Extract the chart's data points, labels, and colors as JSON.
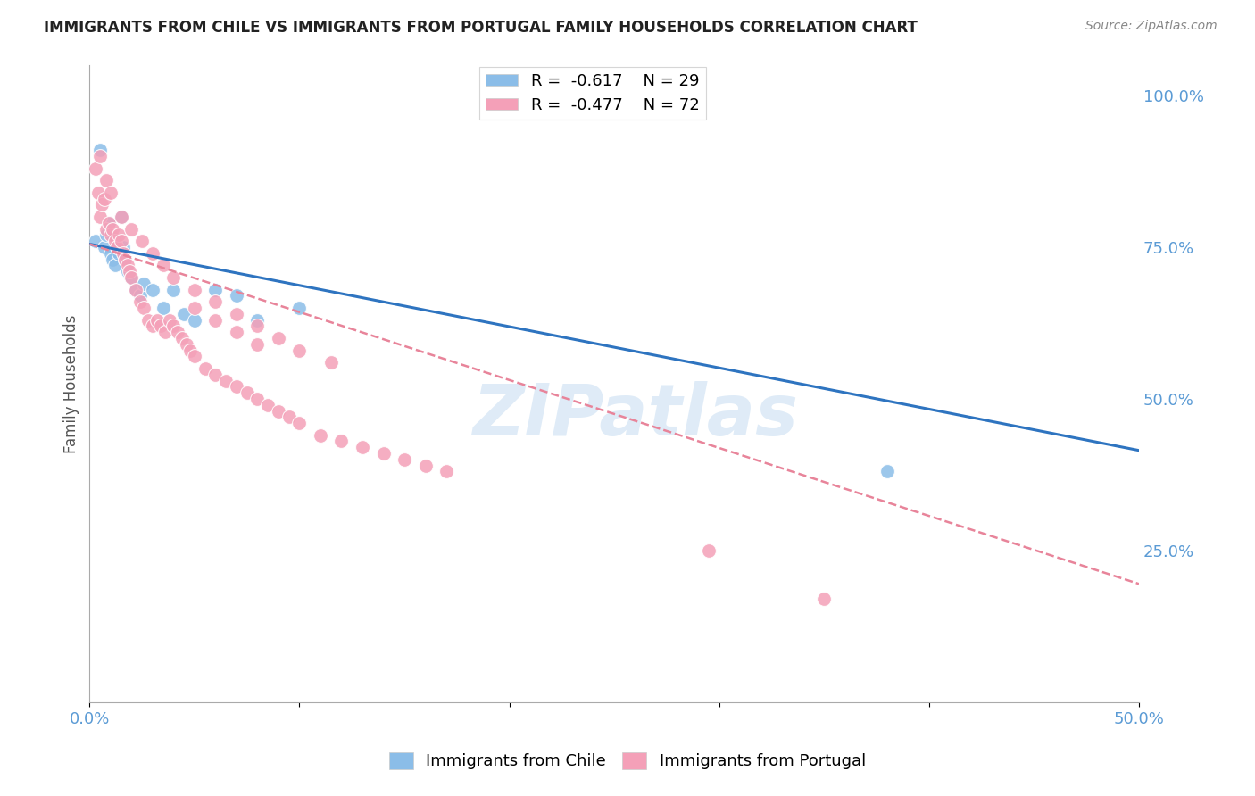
{
  "title": "IMMIGRANTS FROM CHILE VS IMMIGRANTS FROM PORTUGAL FAMILY HOUSEHOLDS CORRELATION CHART",
  "source": "Source: ZipAtlas.com",
  "ylabel": "Family Households",
  "right_yticks": [
    "100.0%",
    "75.0%",
    "50.0%",
    "25.0%"
  ],
  "right_ytick_vals": [
    1.0,
    0.75,
    0.5,
    0.25
  ],
  "watermark": "ZIPatlas",
  "chile_color": "#8bbde8",
  "portugal_color": "#f4a0b8",
  "chile_line_color": "#2e74c0",
  "portugal_line_color": "#e8849a",
  "right_axis_color": "#5b9bd5",
  "xlim": [
    0.0,
    0.5
  ],
  "ylim": [
    0.0,
    1.05
  ],
  "chile_scatter_x": [
    0.003,
    0.005,
    0.007,
    0.008,
    0.009,
    0.01,
    0.011,
    0.012,
    0.013,
    0.014,
    0.015,
    0.016,
    0.017,
    0.018,
    0.02,
    0.022,
    0.024,
    0.026,
    0.03,
    0.035,
    0.04,
    0.045,
    0.05,
    0.06,
    0.07,
    0.08,
    0.1,
    0.38
  ],
  "chile_scatter_y": [
    0.76,
    0.91,
    0.75,
    0.77,
    0.79,
    0.74,
    0.73,
    0.72,
    0.76,
    0.74,
    0.8,
    0.75,
    0.73,
    0.71,
    0.7,
    0.68,
    0.67,
    0.69,
    0.68,
    0.65,
    0.68,
    0.64,
    0.63,
    0.68,
    0.67,
    0.63,
    0.65,
    0.38
  ],
  "portugal_scatter_x": [
    0.003,
    0.004,
    0.005,
    0.006,
    0.007,
    0.008,
    0.009,
    0.01,
    0.011,
    0.012,
    0.013,
    0.014,
    0.015,
    0.016,
    0.017,
    0.018,
    0.019,
    0.02,
    0.022,
    0.024,
    0.026,
    0.028,
    0.03,
    0.032,
    0.034,
    0.036,
    0.038,
    0.04,
    0.042,
    0.044,
    0.046,
    0.048,
    0.05,
    0.055,
    0.06,
    0.065,
    0.07,
    0.075,
    0.08,
    0.085,
    0.09,
    0.095,
    0.1,
    0.11,
    0.12,
    0.13,
    0.14,
    0.15,
    0.16,
    0.17,
    0.005,
    0.008,
    0.01,
    0.015,
    0.02,
    0.025,
    0.03,
    0.035,
    0.04,
    0.05,
    0.06,
    0.07,
    0.08,
    0.09,
    0.1,
    0.115,
    0.05,
    0.06,
    0.07,
    0.08,
    0.295,
    0.35
  ],
  "portugal_scatter_y": [
    0.88,
    0.84,
    0.8,
    0.82,
    0.83,
    0.78,
    0.79,
    0.77,
    0.78,
    0.76,
    0.75,
    0.77,
    0.76,
    0.74,
    0.73,
    0.72,
    0.71,
    0.7,
    0.68,
    0.66,
    0.65,
    0.63,
    0.62,
    0.63,
    0.62,
    0.61,
    0.63,
    0.62,
    0.61,
    0.6,
    0.59,
    0.58,
    0.57,
    0.55,
    0.54,
    0.53,
    0.52,
    0.51,
    0.5,
    0.49,
    0.48,
    0.47,
    0.46,
    0.44,
    0.43,
    0.42,
    0.41,
    0.4,
    0.39,
    0.38,
    0.9,
    0.86,
    0.84,
    0.8,
    0.78,
    0.76,
    0.74,
    0.72,
    0.7,
    0.68,
    0.66,
    0.64,
    0.62,
    0.6,
    0.58,
    0.56,
    0.65,
    0.63,
    0.61,
    0.59,
    0.25,
    0.17
  ]
}
